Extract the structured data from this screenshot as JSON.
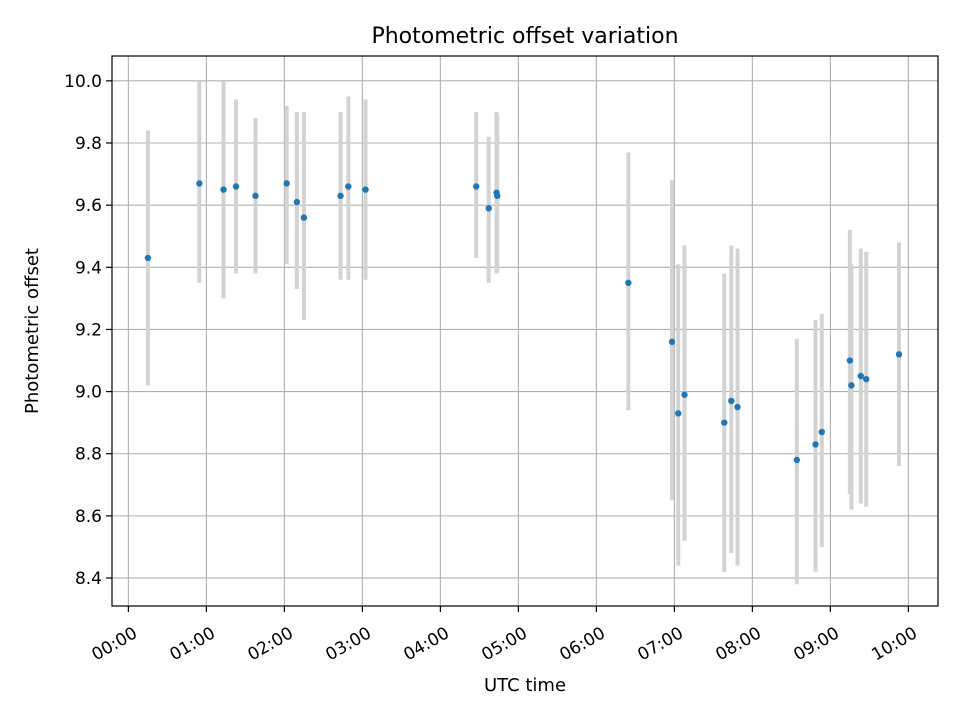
{
  "chart_data": {
    "type": "scatter",
    "title": "Photometric offset variation",
    "xlabel": "UTC time",
    "ylabel": "Photometric offset",
    "x_unit": "hours (UTC)",
    "xlim": [
      -0.21,
      10.38
    ],
    "ylim": [
      8.31,
      10.08
    ],
    "grid": true,
    "legend": "none",
    "x_ticks": [
      {
        "value": 0,
        "label": "00:00"
      },
      {
        "value": 1,
        "label": "01:00"
      },
      {
        "value": 2,
        "label": "02:00"
      },
      {
        "value": 3,
        "label": "03:00"
      },
      {
        "value": 4,
        "label": "04:00"
      },
      {
        "value": 5,
        "label": "05:00"
      },
      {
        "value": 6,
        "label": "06:00"
      },
      {
        "value": 7,
        "label": "07:00"
      },
      {
        "value": 8,
        "label": "08:00"
      },
      {
        "value": 9,
        "label": "09:00"
      },
      {
        "value": 10,
        "label": "10:00"
      }
    ],
    "y_ticks": [
      {
        "value": 8.4,
        "label": "8.4"
      },
      {
        "value": 8.6,
        "label": "8.6"
      },
      {
        "value": 8.8,
        "label": "8.8"
      },
      {
        "value": 9.0,
        "label": "9.0"
      },
      {
        "value": 9.2,
        "label": "9.2"
      },
      {
        "value": 9.4,
        "label": "9.4"
      },
      {
        "value": 9.6,
        "label": "9.6"
      },
      {
        "value": 9.8,
        "label": "9.8"
      },
      {
        "value": 10.0,
        "label": "10.0"
      }
    ],
    "colors": {
      "point": "#1f77b4",
      "errorbar": "#d3d3d3",
      "grid": "#b0b0b0"
    },
    "points": [
      {
        "x": 0.25,
        "y": 9.43,
        "lo": 9.02,
        "hi": 9.84
      },
      {
        "x": 0.91,
        "y": 9.67,
        "lo": 9.35,
        "hi": 10.0
      },
      {
        "x": 1.22,
        "y": 9.65,
        "lo": 9.3,
        "hi": 10.0
      },
      {
        "x": 1.38,
        "y": 9.66,
        "lo": 9.38,
        "hi": 9.94
      },
      {
        "x": 1.63,
        "y": 9.63,
        "lo": 9.38,
        "hi": 9.88
      },
      {
        "x": 2.03,
        "y": 9.67,
        "lo": 9.41,
        "hi": 9.92
      },
      {
        "x": 2.16,
        "y": 9.61,
        "lo": 9.33,
        "hi": 9.9
      },
      {
        "x": 2.25,
        "y": 9.56,
        "lo": 9.23,
        "hi": 9.9
      },
      {
        "x": 2.72,
        "y": 9.63,
        "lo": 9.36,
        "hi": 9.9
      },
      {
        "x": 2.82,
        "y": 9.66,
        "lo": 9.36,
        "hi": 9.95
      },
      {
        "x": 3.04,
        "y": 9.65,
        "lo": 9.36,
        "hi": 9.94
      },
      {
        "x": 4.46,
        "y": 9.66,
        "lo": 9.43,
        "hi": 9.9
      },
      {
        "x": 4.62,
        "y": 9.59,
        "lo": 9.35,
        "hi": 9.82
      },
      {
        "x": 4.72,
        "y": 9.64,
        "lo": 9.38,
        "hi": 9.9
      },
      {
        "x": 4.73,
        "y": 9.63,
        "lo": 9.38,
        "hi": 9.89
      },
      {
        "x": 6.41,
        "y": 9.35,
        "lo": 8.94,
        "hi": 9.77
      },
      {
        "x": 6.97,
        "y": 9.16,
        "lo": 8.65,
        "hi": 9.68
      },
      {
        "x": 7.05,
        "y": 8.93,
        "lo": 8.44,
        "hi": 9.41
      },
      {
        "x": 7.13,
        "y": 8.99,
        "lo": 8.52,
        "hi": 9.47
      },
      {
        "x": 7.64,
        "y": 8.9,
        "lo": 8.42,
        "hi": 9.38
      },
      {
        "x": 7.73,
        "y": 8.97,
        "lo": 8.48,
        "hi": 9.47
      },
      {
        "x": 7.81,
        "y": 8.95,
        "lo": 8.44,
        "hi": 9.46
      },
      {
        "x": 8.57,
        "y": 8.78,
        "lo": 8.38,
        "hi": 9.17
      },
      {
        "x": 8.81,
        "y": 8.83,
        "lo": 8.42,
        "hi": 9.23
      },
      {
        "x": 8.89,
        "y": 8.87,
        "lo": 8.5,
        "hi": 9.25
      },
      {
        "x": 9.25,
        "y": 9.1,
        "lo": 8.67,
        "hi": 9.52
      },
      {
        "x": 9.27,
        "y": 9.02,
        "lo": 8.62,
        "hi": 9.41
      },
      {
        "x": 9.39,
        "y": 9.05,
        "lo": 8.64,
        "hi": 9.46
      },
      {
        "x": 9.46,
        "y": 9.04,
        "lo": 8.63,
        "hi": 9.45
      },
      {
        "x": 9.88,
        "y": 9.12,
        "lo": 8.76,
        "hi": 9.48
      }
    ]
  }
}
